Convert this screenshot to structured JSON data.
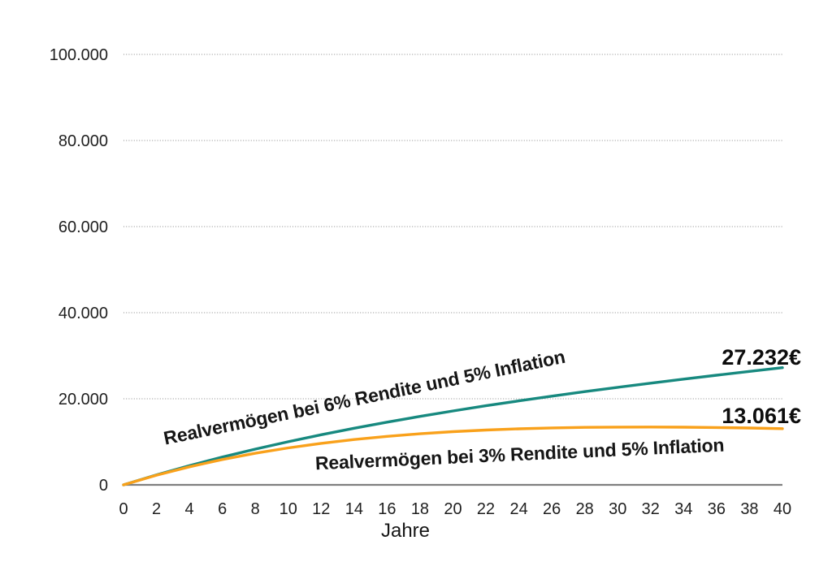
{
  "chart_data": {
    "type": "line",
    "title": "",
    "xlabel": "Jahre",
    "ylabel": "",
    "xlim": [
      0,
      40
    ],
    "ylim": [
      0,
      100000
    ],
    "x": [
      0,
      2,
      4,
      6,
      8,
      10,
      12,
      14,
      16,
      18,
      20,
      22,
      24,
      26,
      28,
      30,
      32,
      34,
      36,
      38,
      40
    ],
    "y_ticks": [
      {
        "value": 0,
        "label": "0"
      },
      {
        "value": 20000,
        "label": "20.000"
      },
      {
        "value": 40000,
        "label": "40.000"
      },
      {
        "value": 60000,
        "label": "60.000"
      },
      {
        "value": 80000,
        "label": "80.000"
      },
      {
        "value": 100000,
        "label": "100.000"
      }
    ],
    "grid": "horizontal dotted gridlines at each y tick, solid baseline at 0",
    "legend_position": "inline labels rotated along curves",
    "axis_color": "#7f7f7f",
    "grid_color": "#a0a0a0",
    "text_color": "#1a1a1a",
    "series": [
      {
        "name": "Realvermögen bei 6% Rendite und 5% Inflation",
        "color": "#17897F",
        "end_label": "27.232€",
        "end_value": 27232,
        "values": [
          0,
          2315,
          4458,
          6448,
          8298,
          10024,
          11636,
          13148,
          14568,
          15908,
          17174,
          18375,
          19518,
          20609,
          21654,
          22659,
          23628,
          24566,
          25477,
          26364,
          27232
        ]
      },
      {
        "name": "Realvermögen bei 3% Rendite und 5% Inflation",
        "color": "#F9A11B",
        "end_label": "13.061€",
        "end_value": 13061,
        "values": [
          0,
          2246,
          4197,
          5886,
          7340,
          8583,
          9637,
          10524,
          11261,
          11865,
          12350,
          12730,
          13018,
          13223,
          13355,
          13424,
          13437,
          13401,
          13323,
          13208,
          13061
        ]
      }
    ]
  }
}
